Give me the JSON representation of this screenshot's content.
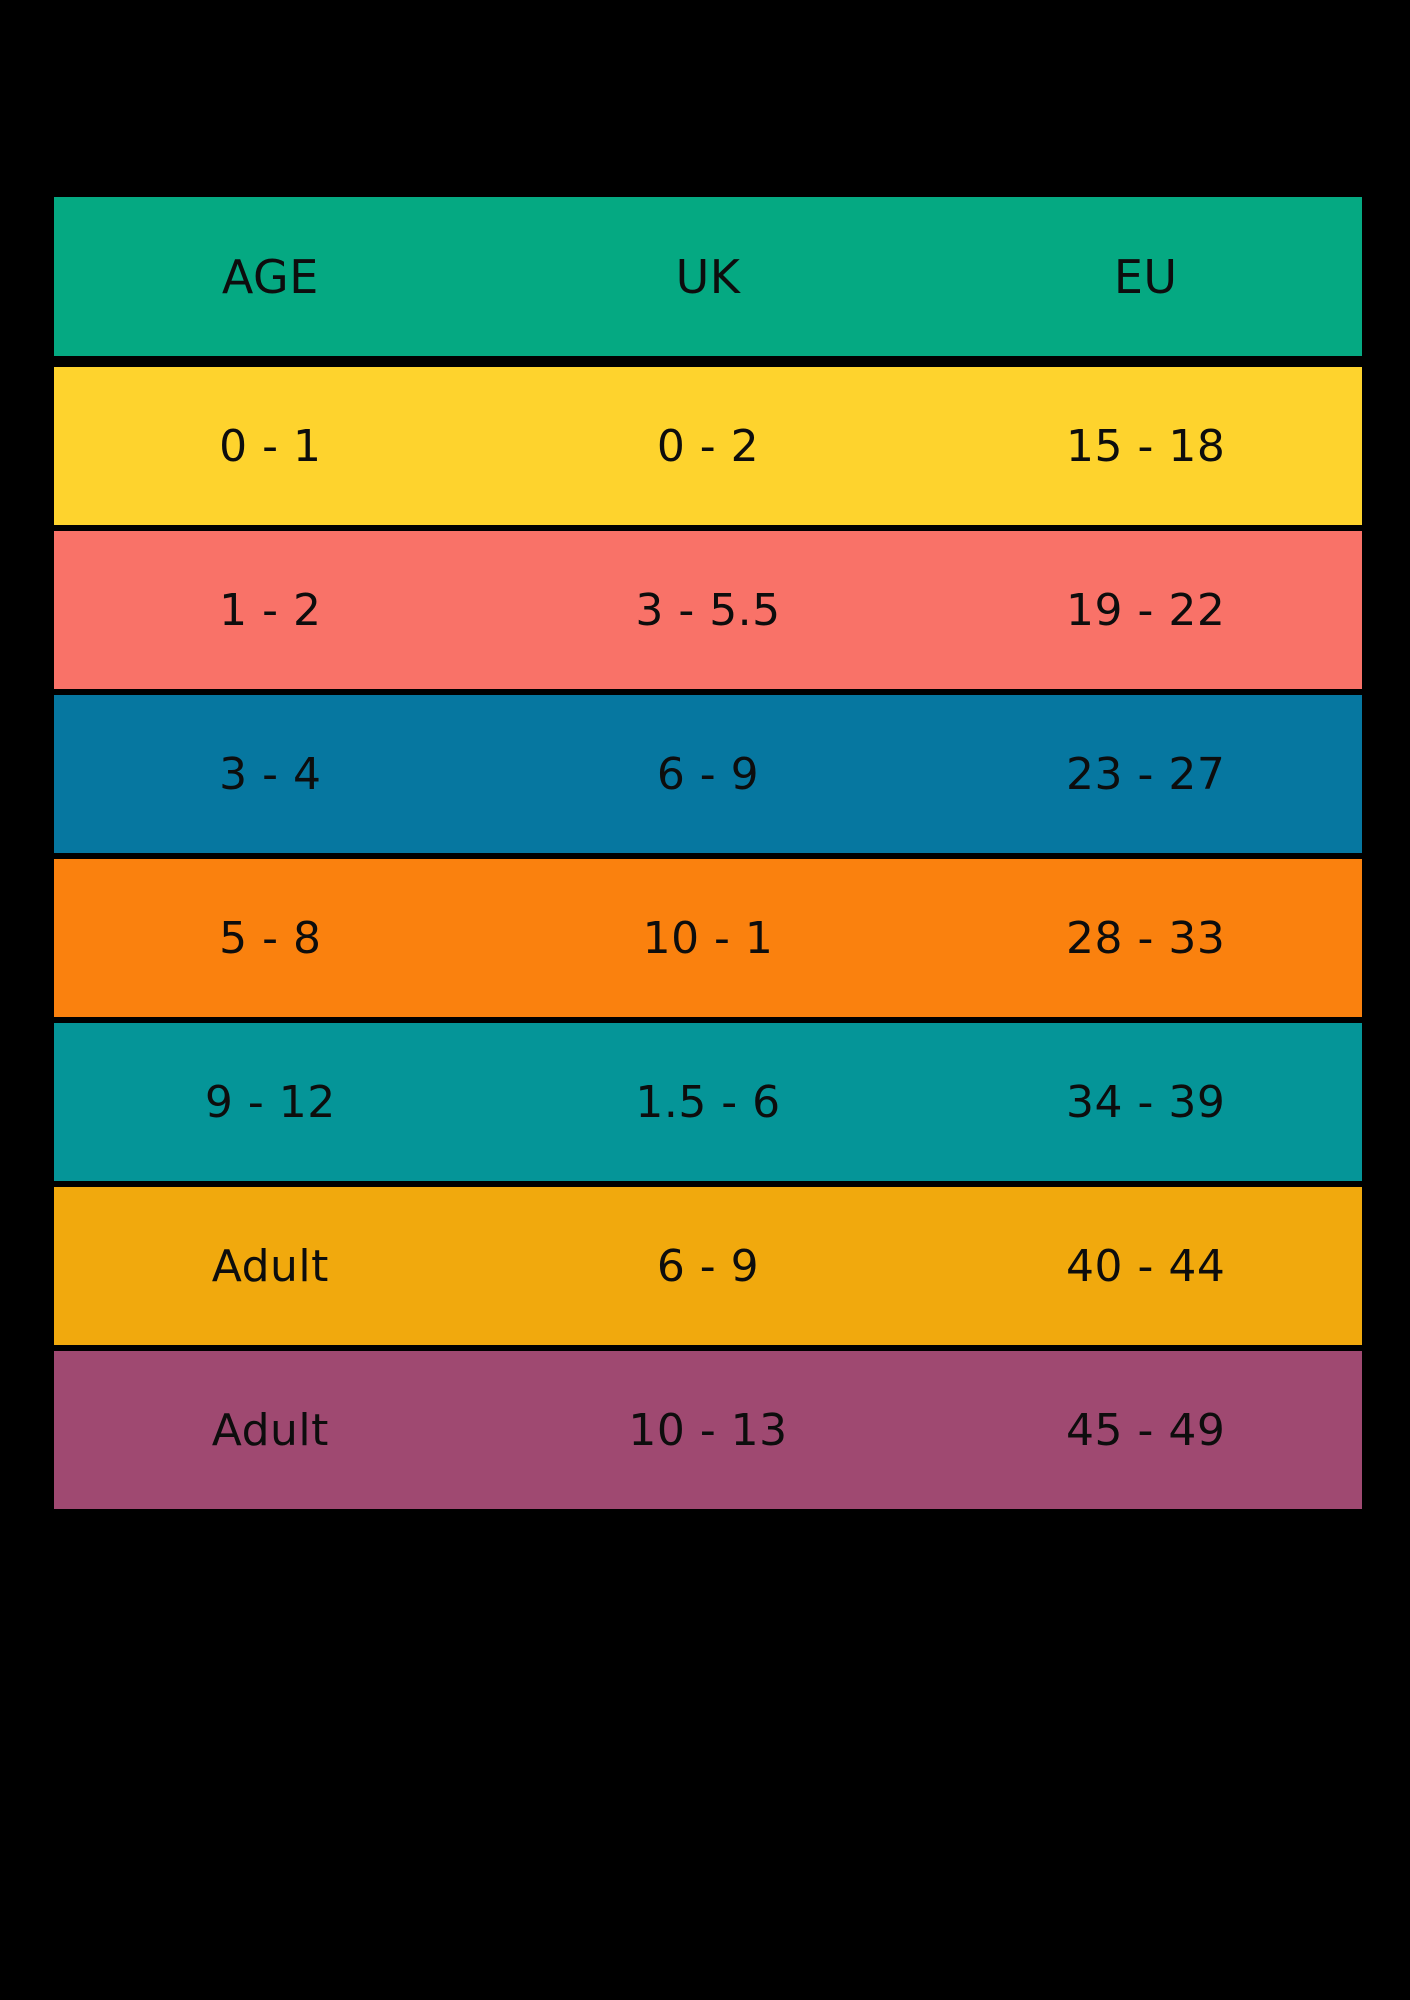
{
  "page": {
    "background": "#000000",
    "text_color": "#0d0d0d"
  },
  "chart_data": {
    "type": "table",
    "columns": [
      "AGE",
      "UK",
      "EU"
    ],
    "header_color": "#05a982",
    "rows": [
      {
        "cells": [
          "0 - 1",
          "0 - 2",
          "15 - 18"
        ],
        "color": "#fed32d"
      },
      {
        "cells": [
          "1 - 2",
          "3 - 5.5",
          "19 - 22"
        ],
        "color": "#f97268"
      },
      {
        "cells": [
          "3 - 4",
          "6 - 9",
          "23 - 27"
        ],
        "color": "#0677a0"
      },
      {
        "cells": [
          "5 - 8",
          "10 - 1",
          "28 - 33"
        ],
        "color": "#fa810e"
      },
      {
        "cells": [
          "9 - 12",
          "1.5 - 6",
          "34 - 39"
        ],
        "color": "#059598"
      },
      {
        "cells": [
          "Adult",
          "6 - 9",
          "40 - 44"
        ],
        "color": "#f1a90d"
      },
      {
        "cells": [
          "Adult",
          "10 - 13",
          "45 - 49"
        ],
        "color": "#9f4971"
      }
    ]
  }
}
